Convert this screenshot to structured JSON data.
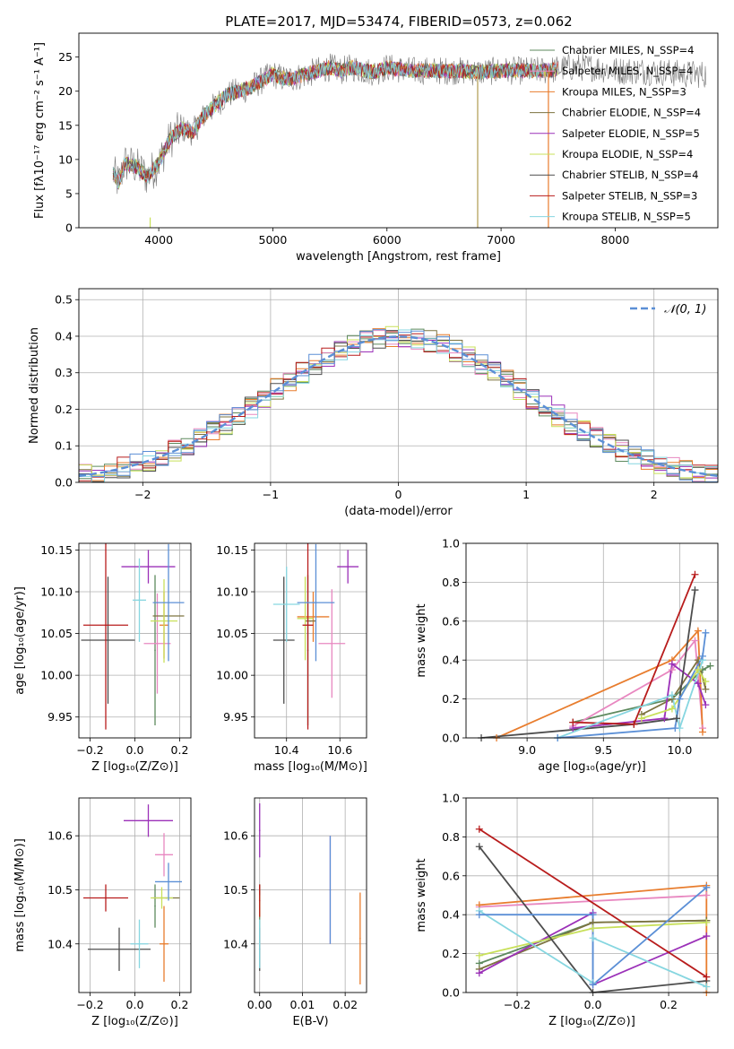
{
  "figure": {
    "title": "PLATE=2017, MJD=53474, FIBERID=0573, z=0.062"
  },
  "chart_data": [
    {
      "id": "spectrum",
      "type": "line",
      "xlabel": "wavelength [Angstrom, rest frame]",
      "ylabel": "Flux [fλ10⁻¹⁷ erg cm⁻² s⁻¹ A⁻¹]",
      "xlim": [
        3300,
        8900
      ],
      "ylim": [
        0,
        28.5
      ],
      "xticks": [
        4000,
        5000,
        6000,
        7000,
        8000
      ],
      "yticks": [
        0,
        5,
        10,
        15,
        20,
        25
      ],
      "grid": false,
      "legend_position": "top-right",
      "data_color": "#777777",
      "envelope": {
        "wavelength": [
          3600,
          3650,
          3700,
          3800,
          3900,
          4000,
          4100,
          4200,
          4300,
          4400,
          4500,
          4600,
          4700,
          4800,
          4900,
          5000,
          5100,
          5200,
          5300,
          5400,
          5500,
          5600,
          5700,
          5800,
          5900,
          6000,
          6200,
          6400,
          6600,
          6800,
          7000,
          7200,
          7400,
          7600,
          7800,
          8000,
          8200,
          8400,
          8600,
          8800
        ],
        "flux": [
          8.0,
          6.5,
          9.5,
          9.0,
          7.5,
          9.5,
          13.0,
          14.5,
          14.0,
          16.5,
          18.0,
          19.5,
          20.0,
          20.5,
          21.5,
          22.5,
          21.8,
          22.0,
          22.5,
          23.0,
          23.5,
          23.0,
          23.5,
          23.0,
          22.8,
          23.5,
          23.0,
          23.0,
          23.0,
          22.8,
          23.0,
          23.0,
          23.0,
          23.5,
          23.5,
          23.0,
          23.0,
          22.8,
          22.5,
          22.5
        ]
      },
      "series": [
        {
          "name": "Chabrier MILES, N_SSP=4",
          "n_ssp": "4",
          "color": "#5e8a5e"
        },
        {
          "name": "Salpeter MILES, N_SSP=4",
          "n_ssp": "4",
          "color": "#e887c0"
        },
        {
          "name": "Kroupa MILES, N_SSP=3",
          "n_ssp": "3",
          "color": "#e87d2e"
        },
        {
          "name": "Chabrier ELODIE, N_SSP=4",
          "n_ssp": "4",
          "color": "#7d7340"
        },
        {
          "name": "Salpeter ELODIE, N_SSP=5",
          "n_ssp": "5",
          "color": "#9b30b8"
        },
        {
          "name": "Kroupa ELODIE, N_SSP=4",
          "n_ssp": "4",
          "color": "#c8e05a"
        },
        {
          "name": "Chabrier STELIB, N_SSP=4",
          "n_ssp": "4",
          "color": "#4d4d4d"
        },
        {
          "name": "Salpeter STELIB, N_SSP=3",
          "n_ssp": "3",
          "color": "#b81c1c"
        },
        {
          "name": "Kroupa STELIB, N_SSP=5",
          "n_ssp": "5",
          "color": "#86d6e0"
        }
      ]
    },
    {
      "id": "residual_hist",
      "type": "line",
      "xlabel": "(data-model)/error",
      "ylabel": "Normed distribution",
      "xlim": [
        -2.5,
        2.5
      ],
      "ylim": [
        0,
        0.53
      ],
      "xticks": [
        -2,
        -1,
        0,
        1,
        2
      ],
      "yticks": [
        0.0,
        0.1,
        0.2,
        0.3,
        0.4,
        0.5
      ],
      "grid": true,
      "legend_position": "top-right",
      "gaussian": {
        "label": "𝒩(0, 1)",
        "mean": 0,
        "sigma": 1,
        "color": "#5b8fd6"
      }
    },
    {
      "id": "age_vs_Z",
      "type": "scatter",
      "xlabel": "Z [log₁₀(Z/Z⊙)]",
      "ylabel": "age  [log₁₀(age/yr)]",
      "xlim": [
        -0.25,
        0.25
      ],
      "ylim": [
        9.925,
        10.158
      ],
      "xticks": [
        -0.2,
        0.0,
        0.2
      ],
      "yticks": [
        9.95,
        10.0,
        10.05,
        10.1,
        10.15
      ],
      "grid": true,
      "points": [
        {
          "color": "#5e8a5e",
          "x": 0.09,
          "xerr": 0.0,
          "y": 10.03,
          "yerr": 0.09
        },
        {
          "color": "#e887c0",
          "x": 0.1,
          "xerr": 0.06,
          "y": 10.038,
          "yerr": 0.06
        },
        {
          "color": "#e87d2e",
          "x": 0.13,
          "xerr": 0.02,
          "y": 10.06,
          "yerr": 0.04
        },
        {
          "color": "#7d7340",
          "x": 0.15,
          "xerr": 0.07,
          "y": 10.071,
          "yerr": 0.0
        },
        {
          "color": "#9b30b8",
          "x": 0.06,
          "xerr": 0.12,
          "y": 10.13,
          "yerr": 0.02
        },
        {
          "color": "#c8e05a",
          "x": 0.13,
          "xerr": 0.06,
          "y": 10.065,
          "yerr": 0.05
        },
        {
          "color": "#4d4d4d",
          "x": -0.12,
          "xerr": 0.12,
          "y": 10.042,
          "yerr": 0.076
        },
        {
          "color": "#b81c1c",
          "x": -0.13,
          "xerr": 0.1,
          "y": 10.06,
          "yerr": 0.125
        },
        {
          "color": "#86d6e0",
          "x": 0.02,
          "xerr": 0.03,
          "y": 10.09,
          "yerr": 0.05
        },
        {
          "color": "#5b8fd6",
          "x": 0.15,
          "xerr": 0.07,
          "y": 10.087,
          "yerr": 0.07
        }
      ]
    },
    {
      "id": "age_vs_mass",
      "type": "scatter",
      "xlabel": "mass [log₁₀(M/M⊙)]",
      "ylabel": "",
      "xlim": [
        10.28,
        10.7
      ],
      "ylim": [
        9.925,
        10.158
      ],
      "xticks": [
        10.4,
        10.6
      ],
      "yticks": [
        9.95,
        10.0,
        10.05,
        10.1,
        10.15
      ],
      "grid": true,
      "points": [
        {
          "color": "#5e8a5e",
          "x": 10.48,
          "xerr": 0.0,
          "y": 10.03,
          "yerr": 0.09
        },
        {
          "color": "#e887c0",
          "x": 10.57,
          "xerr": 0.05,
          "y": 10.038,
          "yerr": 0.065
        },
        {
          "color": "#e87d2e",
          "x": 10.5,
          "xerr": 0.06,
          "y": 10.07,
          "yerr": 0.03
        },
        {
          "color": "#7d7340",
          "x": 10.49,
          "xerr": 0.02,
          "y": 10.065,
          "yerr": 0.0
        },
        {
          "color": "#9b30b8",
          "x": 10.63,
          "xerr": 0.04,
          "y": 10.13,
          "yerr": 0.02
        },
        {
          "color": "#c8e05a",
          "x": 10.47,
          "xerr": 0.03,
          "y": 10.068,
          "yerr": 0.05
        },
        {
          "color": "#4d4d4d",
          "x": 10.39,
          "xerr": 0.04,
          "y": 10.042,
          "yerr": 0.076
        },
        {
          "color": "#b81c1c",
          "x": 10.48,
          "xerr": 0.02,
          "y": 10.06,
          "yerr": 0.125
        },
        {
          "color": "#86d6e0",
          "x": 10.4,
          "xerr": 0.05,
          "y": 10.085,
          "yerr": 0.045
        },
        {
          "color": "#5b8fd6",
          "x": 10.51,
          "xerr": 0.07,
          "y": 10.087,
          "yerr": 0.07
        }
      ]
    },
    {
      "id": "weight_vs_age",
      "type": "line",
      "xlabel": "age  [log₁₀(age/yr)]",
      "ylabel": "mass weight",
      "xlim": [
        8.6,
        10.25
      ],
      "ylim": [
        0,
        1.0
      ],
      "xticks": [
        9.0,
        9.5,
        10.0
      ],
      "yticks": [
        0.0,
        0.2,
        0.4,
        0.6,
        0.8,
        1.0
      ],
      "grid": true,
      "series": [
        {
          "color": "#5e8a5e",
          "x": [
            9.3,
            9.95,
            10.15,
            10.2
          ],
          "y": [
            0.08,
            0.2,
            0.35,
            0.37
          ]
        },
        {
          "color": "#e887c0",
          "x": [
            9.3,
            9.95,
            10.1,
            10.15
          ],
          "y": [
            0.06,
            0.35,
            0.5,
            0.05
          ]
        },
        {
          "color": "#e87d2e",
          "x": [
            8.8,
            9.95,
            10.12,
            10.15
          ],
          "y": [
            0.0,
            0.4,
            0.55,
            0.03
          ]
        },
        {
          "color": "#7d7340",
          "x": [
            9.75,
            9.95,
            10.12,
            10.17
          ],
          "y": [
            0.12,
            0.2,
            0.4,
            0.25
          ]
        },
        {
          "color": "#9b30b8",
          "x": [
            9.3,
            9.9,
            9.95,
            10.12,
            10.17
          ],
          "y": [
            0.05,
            0.1,
            0.38,
            0.28,
            0.17
          ]
        },
        {
          "color": "#c8e05a",
          "x": [
            9.75,
            9.95,
            10.12,
            10.17
          ],
          "y": [
            0.1,
            0.15,
            0.35,
            0.29
          ]
        },
        {
          "color": "#4d4d4d",
          "x": [
            8.7,
            9.7,
            9.98,
            10.1
          ],
          "y": [
            0.0,
            0.07,
            0.1,
            0.76
          ]
        },
        {
          "color": "#b81c1c",
          "x": [
            9.3,
            9.7,
            10.1
          ],
          "y": [
            0.08,
            0.07,
            0.84
          ]
        },
        {
          "color": "#86d6e0",
          "x": [
            9.2,
            9.95,
            10.0,
            10.15
          ],
          "y": [
            0.0,
            0.22,
            0.05,
            0.4
          ]
        },
        {
          "color": "#5b8fd6",
          "x": [
            9.2,
            9.97,
            10.0,
            10.15,
            10.17
          ],
          "y": [
            0.0,
            0.05,
            0.2,
            0.42,
            0.54
          ]
        }
      ]
    },
    {
      "id": "mass_vs_Z",
      "type": "scatter",
      "xlabel": "Z [log₁₀(Z/Z⊙)]",
      "ylabel": "mass [log₁₀(M/M⊙)]",
      "xlim": [
        -0.25,
        0.25
      ],
      "ylim": [
        10.31,
        10.67
      ],
      "xticks": [
        -0.2,
        0.0,
        0.2
      ],
      "yticks": [
        10.4,
        10.5,
        10.6
      ],
      "grid": true,
      "points": [
        {
          "color": "#5e8a5e",
          "x": 0.09,
          "xerr": 0.0,
          "y": 10.47,
          "yerr": 0.04
        },
        {
          "color": "#e887c0",
          "x": 0.13,
          "xerr": 0.04,
          "y": 10.565,
          "yerr": 0.04
        },
        {
          "color": "#e87d2e",
          "x": 0.13,
          "xerr": 0.02,
          "y": 10.4,
          "yerr": 0.07
        },
        {
          "color": "#7d7340",
          "x": 0.14,
          "xerr": 0.06,
          "y": 10.485,
          "yerr": 0.0
        },
        {
          "color": "#9b30b8",
          "x": 0.06,
          "xerr": 0.11,
          "y": 10.628,
          "yerr": 0.03
        },
        {
          "color": "#c8e05a",
          "x": 0.12,
          "xerr": 0.05,
          "y": 10.485,
          "yerr": 0.02
        },
        {
          "color": "#4d4d4d",
          "x": -0.07,
          "xerr": 0.14,
          "y": 10.39,
          "yerr": 0.04
        },
        {
          "color": "#b81c1c",
          "x": -0.13,
          "xerr": 0.1,
          "y": 10.485,
          "yerr": 0.025
        },
        {
          "color": "#86d6e0",
          "x": 0.02,
          "xerr": 0.04,
          "y": 10.4,
          "yerr": 0.045
        },
        {
          "color": "#5b8fd6",
          "x": 0.15,
          "xerr": 0.06,
          "y": 10.515,
          "yerr": 0.035
        }
      ]
    },
    {
      "id": "mass_vs_ebv",
      "type": "scatter",
      "xlabel": "E(B-V)",
      "ylabel": "",
      "xlim": [
        -0.0012,
        0.025
      ],
      "ylim": [
        10.31,
        10.67
      ],
      "xticks": [
        0.0,
        0.01,
        0.02
      ],
      "yticks": [
        10.4,
        10.5,
        10.6
      ],
      "grid": true,
      "points": [
        {
          "color": "#5e8a5e",
          "x": 0.0,
          "xerr": 0.0,
          "y": 10.47,
          "yerr": 0.04
        },
        {
          "color": "#e887c0",
          "x": 0.0165,
          "xerr": 0.0,
          "y": 10.5,
          "yerr": 0.1
        },
        {
          "color": "#e87d2e",
          "x": 0.0235,
          "xerr": 0.0,
          "y": 10.41,
          "yerr": 0.085
        },
        {
          "color": "#7d7340",
          "x": 0.0,
          "xerr": 0.0,
          "y": 10.48,
          "yerr": 0.03
        },
        {
          "color": "#9b30b8",
          "x": 0.0,
          "xerr": 0.0,
          "y": 10.61,
          "yerr": 0.05
        },
        {
          "color": "#c8e05a",
          "x": 0.0,
          "xerr": 0.0,
          "y": 10.47,
          "yerr": 0.02
        },
        {
          "color": "#4d4d4d",
          "x": 0.0,
          "xerr": 0.0,
          "y": 10.39,
          "yerr": 0.04
        },
        {
          "color": "#b81c1c",
          "x": 0.0,
          "xerr": 0.0,
          "y": 10.48,
          "yerr": 0.03
        },
        {
          "color": "#86d6e0",
          "x": 0.0,
          "xerr": 0.0,
          "y": 10.4,
          "yerr": 0.045
        },
        {
          "color": "#5b8fd6",
          "x": 0.0165,
          "xerr": 0.0,
          "y": 10.5,
          "yerr": 0.1
        }
      ]
    },
    {
      "id": "weight_vs_Z",
      "type": "line",
      "xlabel": "Z [log₁₀(Z/Z⊙)]",
      "ylabel": "mass weight",
      "xlim": [
        -0.335,
        0.33
      ],
      "ylim": [
        0,
        1.0
      ],
      "xticks": [
        -0.2,
        0.0,
        0.2
      ],
      "yticks": [
        0.0,
        0.2,
        0.4,
        0.6,
        0.8,
        1.0
      ],
      "grid": true,
      "series": [
        {
          "color": "#5e8a5e",
          "x": [
            -0.3,
            0.0,
            0.3
          ],
          "y": [
            0.15,
            0.36,
            0.37
          ]
        },
        {
          "color": "#e887c0",
          "x": [
            -0.3,
            0.3
          ],
          "y": [
            0.44,
            0.5
          ]
        },
        {
          "color": "#e87d2e",
          "x": [
            -0.3,
            0.3,
            0.3
          ],
          "y": [
            0.45,
            0.55,
            0.0
          ]
        },
        {
          "color": "#7d7340",
          "x": [
            -0.3,
            0.0,
            0.3
          ],
          "y": [
            0.12,
            0.36,
            0.37
          ]
        },
        {
          "color": "#9b30b8",
          "x": [
            -0.3,
            0.0,
            0.0,
            0.3
          ],
          "y": [
            0.1,
            0.41,
            0.04,
            0.29
          ]
        },
        {
          "color": "#c8e05a",
          "x": [
            -0.3,
            0.0,
            0.3
          ],
          "y": [
            0.19,
            0.33,
            0.36
          ]
        },
        {
          "color": "#4d4d4d",
          "x": [
            -0.3,
            0.0,
            0.3
          ],
          "y": [
            0.75,
            0.0,
            0.06
          ]
        },
        {
          "color": "#b81c1c",
          "x": [
            -0.3,
            0.3
          ],
          "y": [
            0.84,
            0.08
          ]
        },
        {
          "color": "#86d6e0",
          "x": [
            -0.3,
            0.0,
            0.0,
            0.3
          ],
          "y": [
            0.42,
            0.05,
            0.28,
            0.03
          ]
        },
        {
          "color": "#5b8fd6",
          "x": [
            -0.3,
            0.0,
            0.0,
            0.3
          ],
          "y": [
            0.4,
            0.4,
            0.04,
            0.54
          ]
        }
      ]
    }
  ]
}
